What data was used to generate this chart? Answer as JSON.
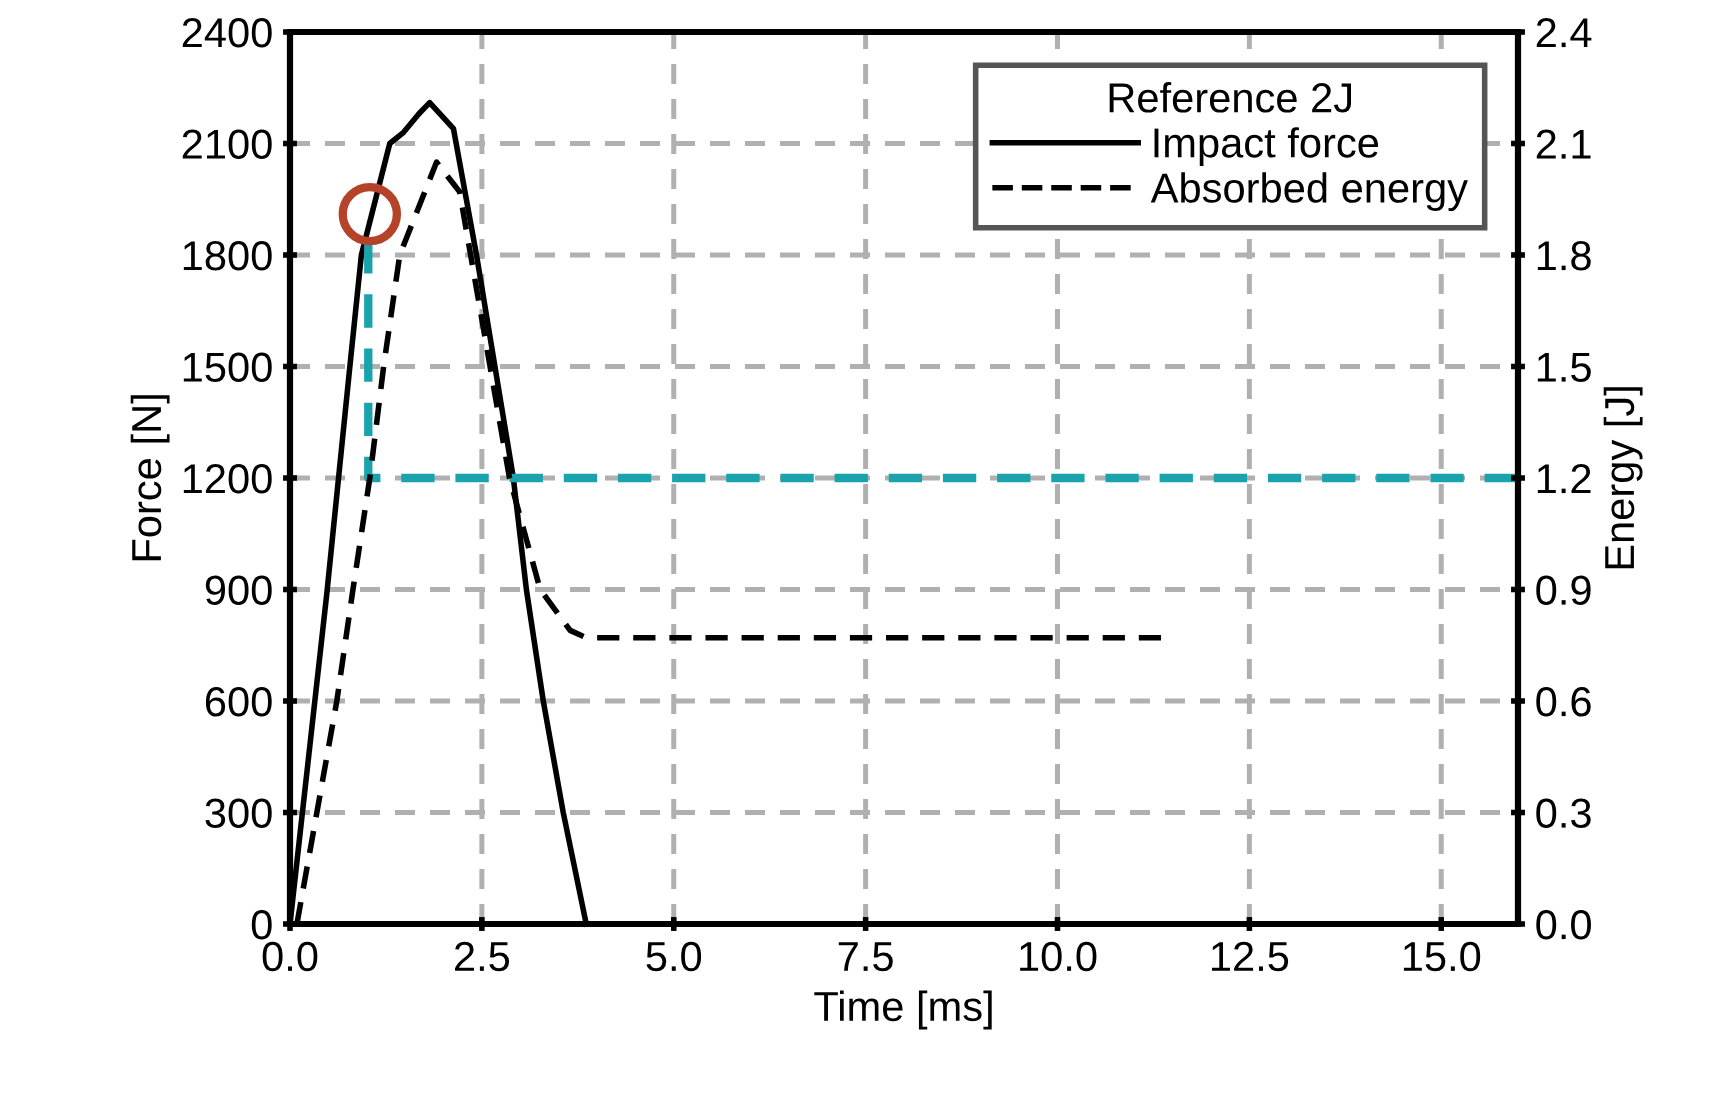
{
  "chart_data": {
    "type": "line",
    "xlabel": "Time [ms]",
    "ylabel": "Force [N]",
    "y2label": "Energy [J]",
    "legend_title": "Reference 2J",
    "series": [
      {
        "name": "Impact force",
        "color": "#000000",
        "line_style": "solid",
        "x": [
          0,
          0.48,
          0.78,
          0.93,
          1.3,
          1.48,
          1.68,
          1.82,
          2.13,
          2.43,
          2.91,
          3.08,
          3.3,
          3.56,
          3.86
        ],
        "values": [
          0,
          890,
          1500,
          1800,
          2100,
          2130,
          2180,
          2210,
          2140,
          1800,
          1200,
          900,
          600,
          300,
          0
        ]
      },
      {
        "name": "Absorbed energy",
        "color": "#000000",
        "line_style": "dashed",
        "axis": "y2",
        "x": [
          0.09,
          0.35,
          0.61,
          0.82,
          1.04,
          1.22,
          1.43,
          1.91,
          2.21,
          2.86,
          3.26,
          3.65,
          3.86,
          11.4
        ],
        "values": [
          0,
          0.3,
          0.6,
          0.9,
          1.2,
          1.5,
          1.8,
          2.05,
          1.97,
          1.2,
          0.9,
          0.79,
          0.77,
          0.77
        ]
      },
      {
        "color": "#1aa3ad",
        "line_style": "dashed",
        "x": [
          1.02,
          1.02,
          16
        ],
        "values": [
          1840,
          1200,
          1200
        ]
      },
      {
        "type": "scatter",
        "marker": "circle",
        "color": "#b5432a",
        "x": [
          1.04
        ],
        "values": [
          1910
        ]
      }
    ],
    "xlim": [
      0,
      16
    ],
    "xticks": [
      {
        "value": 0,
        "label": "0.0"
      },
      {
        "value": 2.5,
        "label": "2.5"
      },
      {
        "value": 5,
        "label": "5.0"
      },
      {
        "value": 7.5,
        "label": "7.5"
      },
      {
        "value": 10,
        "label": "10.0"
      },
      {
        "value": 12.5,
        "label": "12.5"
      },
      {
        "value": 15,
        "label": "15.0"
      }
    ],
    "ylim": [
      0,
      2400
    ],
    "yticks": [
      0,
      300,
      600,
      900,
      1200,
      1500,
      1800,
      2100,
      2400
    ],
    "y2lim": [
      0,
      2.4
    ],
    "y2ticks": [
      {
        "value": 0,
        "label": "0.0"
      },
      0.3,
      0.6,
      0.9,
      1.2,
      1.5,
      1.8,
      2.1,
      2.4
    ],
    "grid": true,
    "legend": "top right"
  }
}
